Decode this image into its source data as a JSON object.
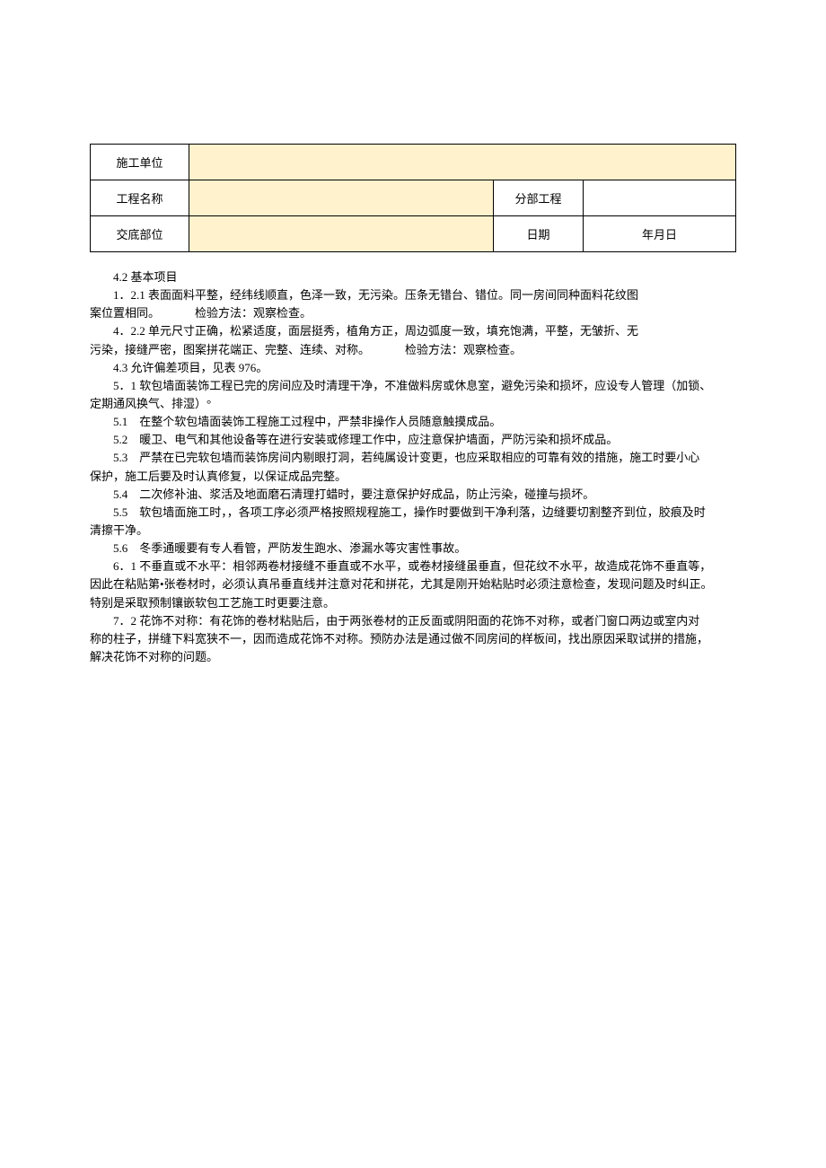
{
  "table": {
    "row1_label": "施工单位",
    "row1_value": "",
    "row2_label": "工程名称",
    "row2_value": "",
    "row2_label2": "分部工程",
    "row2_value2": "",
    "row3_label": "交底部位",
    "row3_value": "",
    "row3_label2": "日期",
    "row3_value2": "年月日"
  },
  "body": {
    "p1": "4.2 基本项目",
    "p2a": "1．2.1 表面面料平整，经纬线顺直，色泽一致，无污染。压条无错台、错位。同一房间同种面料花纹图",
    "p2b": "案位置相同。",
    "p2c": "检验方法：观察检查。",
    "p3a": "4．2.2 单元尺寸正确，松紧适度，面层挺秀，植角方正，周边弧度一致，填充饱满，平整，无皱折、无",
    "p3b": "污染，接缝严密，图案拼花端正、完整、连续、对称。",
    "p3c": "检验方法：观察检查。",
    "p4": "4.3 允许偏差项目，见表 976。",
    "p5a": "5．1 软包墙面装饰工程已完的房间应及时清理干净，不准做料房或休息室，避免污染和损坏，应设专人管理（加锁、",
    "p5b": "定期通风换气、排湿）°",
    "p6": "5.1　在整个软包墙面装饰工程施工过程中，严禁非操作人员随意触摸成品。",
    "p7": "5.2　暖卫、电气和其他设备等在进行安装或修理工作中，应注意保护墙面，严防污染和损坏成品。",
    "p8a": "5.3　严禁在已完软包墙而装饰房间内剔眼打洞，若纯属设计变更，也应采取相应的可靠有效的措施，施工时要小心",
    "p8b": "保护，施工后要及时认真修复，以保证成品完整。",
    "p9": "5.4　二次修补油、浆活及地面磨石清理打蜡时，要注意保护好成品，防止污染，碰撞与损坏。",
    "p10a": "5.5　软包墙面施工时，，各项工序必须严格按照规程施工，操作时要做到干净利落，边缝要切割整齐到位，胶痕及时",
    "p10b": "清擦干净。",
    "p11": "5.6　冬季通暖要有专人看管，严防发生跑水、渗漏水等灾害性事故。",
    "p12a": "6．1 不垂直或不水平：相邻两卷材接缝不垂直或不水平，或卷材接缝虽垂直，但花纹不水平，故造成花饰不垂直等，",
    "p12b": "因此在粘贴第•张卷材时，必须认真吊垂直线并注意对花和拼花，尤其是刚开始粘贴时必须注意检查，发现问题及时纠正。",
    "p12c": "特别是采取预制镶嵌软包工艺施工时更要注意。",
    "p13a": "7．2 花饰不对称：有花饰的卷材粘贴后，由于两张卷材的正反面或阴阳面的花饰不对称，或者门窗口两边或室内对",
    "p13b": "称的柱子，拼缝下料宽狭不一，因而造成花饰不对称。预防办法是通过做不同房间的样板间，找出原因采取试拼的措施，",
    "p13c": "解决花饰不对称的问题。"
  },
  "style": {
    "highlight_bg": "#fff2cc",
    "border_color": "#000000",
    "font_size": 13,
    "line_height": 1.55
  }
}
